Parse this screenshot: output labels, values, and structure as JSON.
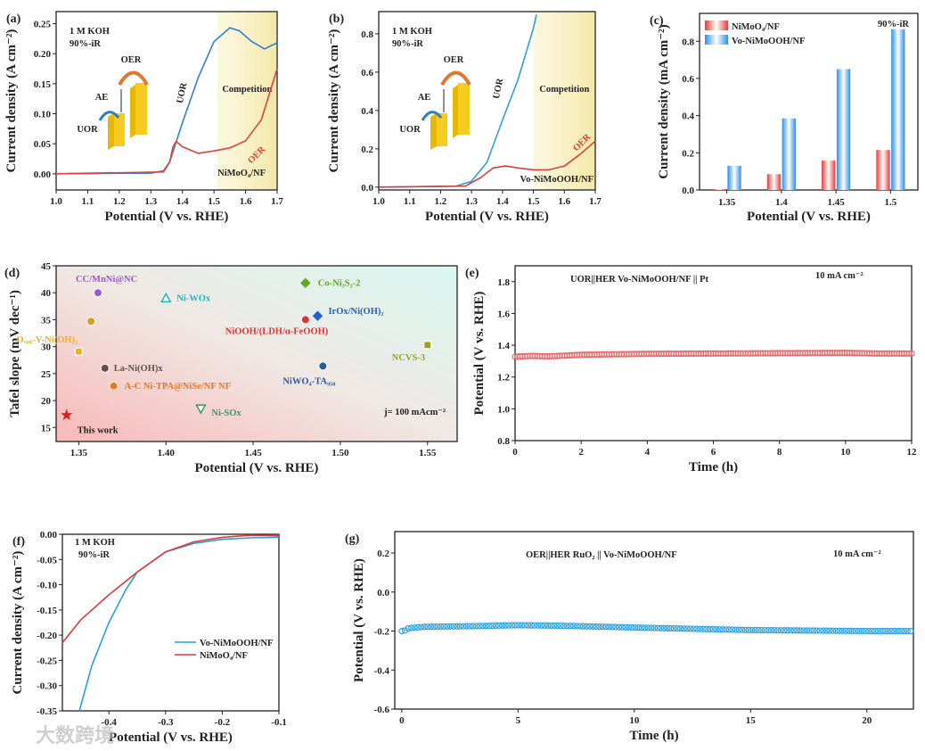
{
  "watermark": "大数跨境",
  "chart_data": [
    {
      "id": "a",
      "type": "line",
      "panel_label": "(a)",
      "xlabel": "Potential (V vs. RHE)",
      "ylabel": "Current density (A cm⁻²)",
      "xlim": [
        1.0,
        1.7
      ],
      "ylim": [
        -0.027,
        0.27
      ],
      "xticks": [
        1.0,
        1.1,
        1.2,
        1.3,
        1.4,
        1.5,
        1.6,
        1.7
      ],
      "xticklabels": [
        "1.0",
        "1.1",
        "1.2",
        "1.3",
        "1.4",
        "1.5",
        "1.6",
        "1.7"
      ],
      "yticks": [
        0,
        0.05,
        0.1,
        0.15,
        0.2,
        0.25
      ],
      "yticklabels": [
        "0.00",
        "0.05",
        "0.10",
        "0.15",
        "0.20",
        "0.25"
      ],
      "shaded_region": {
        "x": [
          1.51,
          1.7
        ],
        "label": "Competition"
      },
      "annotations": [
        "1 M KOH",
        "90%-iR",
        "UOR",
        "OER",
        "NiMoO₄/NF"
      ],
      "inset": {
        "labels": [
          "OER",
          "AE",
          "UOR"
        ]
      },
      "series": [
        {
          "name": "UOR",
          "color": "#2f7fd0",
          "x": [
            1.0,
            1.3,
            1.34,
            1.36,
            1.4,
            1.45,
            1.5,
            1.55,
            1.58,
            1.62,
            1.66,
            1.7
          ],
          "y": [
            0,
            0.001,
            0.005,
            0.02,
            0.085,
            0.16,
            0.22,
            0.243,
            0.238,
            0.22,
            0.208,
            0.218
          ]
        },
        {
          "name": "OER",
          "color": "#e04040",
          "x": [
            1.0,
            1.34,
            1.36,
            1.37,
            1.38,
            1.4,
            1.45,
            1.5,
            1.55,
            1.6,
            1.65,
            1.7
          ],
          "y": [
            0,
            0.003,
            0.02,
            0.045,
            0.054,
            0.045,
            0.034,
            0.038,
            0.043,
            0.055,
            0.09,
            0.175
          ]
        }
      ]
    },
    {
      "id": "b",
      "type": "line",
      "panel_label": "(b)",
      "xlabel": "Potential (V vs. RHE)",
      "ylabel": "Current density (A cm⁻²)",
      "xlim": [
        1.0,
        1.7
      ],
      "ylim": [
        -0.015,
        0.916
      ],
      "xticks": [
        1.0,
        1.1,
        1.2,
        1.3,
        1.4,
        1.5,
        1.6,
        1.7
      ],
      "xticklabels": [
        "1.0",
        "1.1",
        "1.2",
        "1.3",
        "1.4",
        "1.5",
        "1.6",
        "1.7"
      ],
      "yticks": [
        0,
        0.2,
        0.4,
        0.6,
        0.8
      ],
      "yticklabels": [
        "0.0",
        "0.2",
        "0.4",
        "0.6",
        "0.8"
      ],
      "shaded_region": {
        "x": [
          1.5,
          1.7
        ],
        "label": "Competition"
      },
      "annotations": [
        "1 M KOH",
        "90%-iR",
        "UOR",
        "OER",
        "Vo-NiMoOOH/NF"
      ],
      "inset": {
        "labels": [
          "OER",
          "AE",
          "UOR"
        ]
      },
      "series": [
        {
          "name": "UOR",
          "color": "#2f9fd8",
          "x": [
            1.0,
            1.25,
            1.3,
            1.35,
            1.4,
            1.45,
            1.5,
            1.51
          ],
          "y": [
            0,
            0.005,
            0.03,
            0.13,
            0.35,
            0.56,
            0.83,
            0.9
          ]
        },
        {
          "name": "OER",
          "color": "#d84040",
          "x": [
            1.0,
            1.28,
            1.33,
            1.37,
            1.41,
            1.45,
            1.5,
            1.55,
            1.6,
            1.65,
            1.7
          ],
          "y": [
            0,
            0.005,
            0.05,
            0.1,
            0.11,
            0.1,
            0.09,
            0.09,
            0.11,
            0.17,
            0.24
          ]
        }
      ]
    },
    {
      "id": "c",
      "type": "bar",
      "panel_label": "(c)",
      "xlabel": "Potential (V vs. RHE)",
      "ylabel": "Current density (mA cm⁻²)",
      "categories": [
        "1.35",
        "1.4",
        "1.45",
        "1.5"
      ],
      "ylim": [
        0,
        0.95
      ],
      "yticks": [
        0,
        0.2,
        0.4,
        0.6,
        0.8
      ],
      "yticklabels": [
        "0.0",
        "0.2",
        "0.4",
        "0.6",
        "0.8"
      ],
      "annotations": [
        "90%-iR"
      ],
      "legend": "top-left",
      "series": [
        {
          "name": "NiMoO₄/NF",
          "color": "#e84a4a",
          "values": [
            0.005,
            0.085,
            0.158,
            0.215
          ]
        },
        {
          "name": "Vo-NiMoOOH/NF",
          "color": "#3a9be8",
          "values": [
            0.13,
            0.385,
            0.65,
            0.865
          ]
        }
      ]
    },
    {
      "id": "d",
      "type": "scatter",
      "panel_label": "(d)",
      "xlabel": "Potential (V vs. RHE)",
      "ylabel": "Tafel slope (mV dec⁻¹)",
      "xlim": [
        1.337,
        1.567
      ],
      "ylim": [
        12.4,
        45
      ],
      "xticks": [
        1.35,
        1.4,
        1.45,
        1.5,
        1.55
      ],
      "xticklabels": [
        "1.35",
        "1.40",
        "1.45",
        "1.50",
        "1.55"
      ],
      "yticks": [
        15,
        20,
        25,
        30,
        35,
        40,
        45
      ],
      "yticklabels": [
        "15",
        "20",
        "25",
        "30",
        "35",
        "40",
        "45"
      ],
      "annotations": [
        "j= 100 mAcm⁻²"
      ],
      "points": [
        {
          "label": "This work",
          "x": 1.343,
          "y": 17.3,
          "color": "#e02020",
          "marker": "star",
          "label_color": "#222"
        },
        {
          "label": "CC/MnNi@NC",
          "x": 1.361,
          "y": 40,
          "color": "#9b59d0",
          "marker": "circle"
        },
        {
          "label": "",
          "x": 1.357,
          "y": 34.7,
          "color": "#d4a020",
          "marker": "circle"
        },
        {
          "label": "Oᵥₐ꜀-V-Ni(OH)₂",
          "x": 1.35,
          "y": 29.1,
          "color": "#f0b020",
          "marker": "square"
        },
        {
          "label": "La-Ni(OH)x",
          "x": 1.365,
          "y": 26,
          "color": "#6b4a4a",
          "marker": "circle",
          "label_color": "#555"
        },
        {
          "label": "A-C Ni-TPA@NiSe/NF NF",
          "x": 1.37,
          "y": 22.7,
          "color": "#e87820",
          "marker": "circle"
        },
        {
          "label": "Ni-WOx",
          "x": 1.4,
          "y": 39,
          "color": "#20b8c0",
          "marker": "triangle"
        },
        {
          "label": "Ni-SOx",
          "x": 1.42,
          "y": 18.5,
          "color": "#3a9a60",
          "marker": "triangle-down"
        },
        {
          "label": "Co-Ni₃S₂-2",
          "x": 1.48,
          "y": 41.8,
          "color": "#60a820",
          "marker": "diamond"
        },
        {
          "label": "NiOOH/(LDH/α-FeOOH)",
          "x": 1.48,
          "y": 35,
          "color": "#e03030",
          "marker": "circle"
        },
        {
          "label": "IrOx/Ni(OH)₂",
          "x": 1.487,
          "y": 35.7,
          "color": "#2060d0",
          "marker": "diamond"
        },
        {
          "label": "NiWO₄-TA₉₅₀",
          "x": 1.49,
          "y": 26.4,
          "color": "#2a5a9a",
          "marker": "circle"
        },
        {
          "label": "NCVS-3",
          "x": 1.55,
          "y": 30.3,
          "color": "#a0a020",
          "marker": "square"
        }
      ]
    },
    {
      "id": "e",
      "type": "scatter",
      "panel_label": "(e)",
      "xlabel": "Time (h)",
      "ylabel": "Potential (V vs. RHE)",
      "xlim": [
        0,
        12
      ],
      "ylim": [
        0.8,
        1.9
      ],
      "xticks": [
        0,
        2,
        4,
        6,
        8,
        10,
        12
      ],
      "xticklabels": [
        "0",
        "2",
        "4",
        "6",
        "8",
        "10",
        "12"
      ],
      "yticks": [
        0.8,
        1.0,
        1.2,
        1.4,
        1.6,
        1.8
      ],
      "yticklabels": [
        "0.8",
        "1.0",
        "1.2",
        "1.4",
        "1.6",
        "1.8"
      ],
      "annotations": [
        "UOR||HER   Vo-NiMoOOH/NF || Pt",
        "10 mA cm⁻²"
      ],
      "series": [
        {
          "name": "Vo-NiMoOOH/NF || Pt",
          "color": "#e86a6a",
          "x": [
            0,
            0.5,
            1,
            2,
            4,
            6,
            8,
            10,
            11,
            12
          ],
          "y": [
            1.328,
            1.333,
            1.33,
            1.34,
            1.346,
            1.348,
            1.35,
            1.352,
            1.348,
            1.348
          ]
        }
      ]
    },
    {
      "id": "f",
      "type": "line",
      "panel_label": "(f)",
      "xlabel": "Potential (V vs. RHE)",
      "ylabel": "Current density (A cm⁻²)",
      "xlim": [
        -0.482,
        -0.1
      ],
      "ylim": [
        -0.35,
        0
      ],
      "xticks": [
        -0.4,
        -0.3,
        -0.2,
        -0.1
      ],
      "xticklabels": [
        "-0.4",
        "-0.3",
        "-0.2",
        "-0.1"
      ],
      "yticks": [
        0,
        -0.05,
        -0.1,
        -0.15,
        -0.2,
        -0.25,
        -0.3,
        -0.35
      ],
      "yticklabels": [
        "0.00",
        "-0.05",
        "-0.10",
        "-0.15",
        "-0.20",
        "-0.25",
        "-0.30",
        "-0.35"
      ],
      "annotations": [
        "1 M KOH",
        "90%-iR"
      ],
      "legend": "center-right",
      "series": [
        {
          "name": "Vo-NiMoOOH/NF",
          "color": "#2a9ed8",
          "x": [
            -0.452,
            -0.43,
            -0.4,
            -0.37,
            -0.35,
            -0.3,
            -0.25,
            -0.2,
            -0.15,
            -0.1
          ],
          "y": [
            -0.35,
            -0.26,
            -0.175,
            -0.11,
            -0.075,
            -0.035,
            -0.018,
            -0.01,
            -0.007,
            -0.006
          ]
        },
        {
          "name": "NiMoO₄/NF",
          "color": "#e03a3a",
          "x": [
            -0.482,
            -0.45,
            -0.4,
            -0.35,
            -0.3,
            -0.25,
            -0.2,
            -0.15,
            -0.1
          ],
          "y": [
            -0.215,
            -0.17,
            -0.12,
            -0.075,
            -0.035,
            -0.015,
            -0.006,
            -0.002,
            -0.003
          ]
        }
      ]
    },
    {
      "id": "g",
      "type": "scatter",
      "panel_label": "(g)",
      "xlabel": "Time (h)",
      "ylabel": "Potential (V vs. RHE)",
      "xlim": [
        -0.3,
        22
      ],
      "ylim": [
        -0.6,
        0.31
      ],
      "xticks": [
        0,
        5,
        10,
        15,
        20
      ],
      "xticklabels": [
        "0",
        "5",
        "10",
        "15",
        "20"
      ],
      "yticks": [
        0.2,
        0,
        -0.2,
        -0.4,
        -0.6
      ],
      "yticklabels": [
        "0.2",
        "0.0",
        "-0.2",
        "-0.4",
        "-0.6"
      ],
      "annotations": [
        "OER||HER   RuO₂ || Vo-NiMoOOH/NF",
        "10 mA cm⁻²"
      ],
      "series": [
        {
          "name": "RuO₂ || Vo-NiMoOOH/NF",
          "color": "#2aa0e0",
          "x": [
            0,
            0.1,
            0.3,
            1,
            3,
            5,
            7,
            10,
            15,
            20,
            22
          ],
          "y": [
            -0.2,
            -0.2,
            -0.185,
            -0.178,
            -0.175,
            -0.17,
            -0.173,
            -0.182,
            -0.195,
            -0.2,
            -0.2
          ]
        }
      ]
    }
  ]
}
